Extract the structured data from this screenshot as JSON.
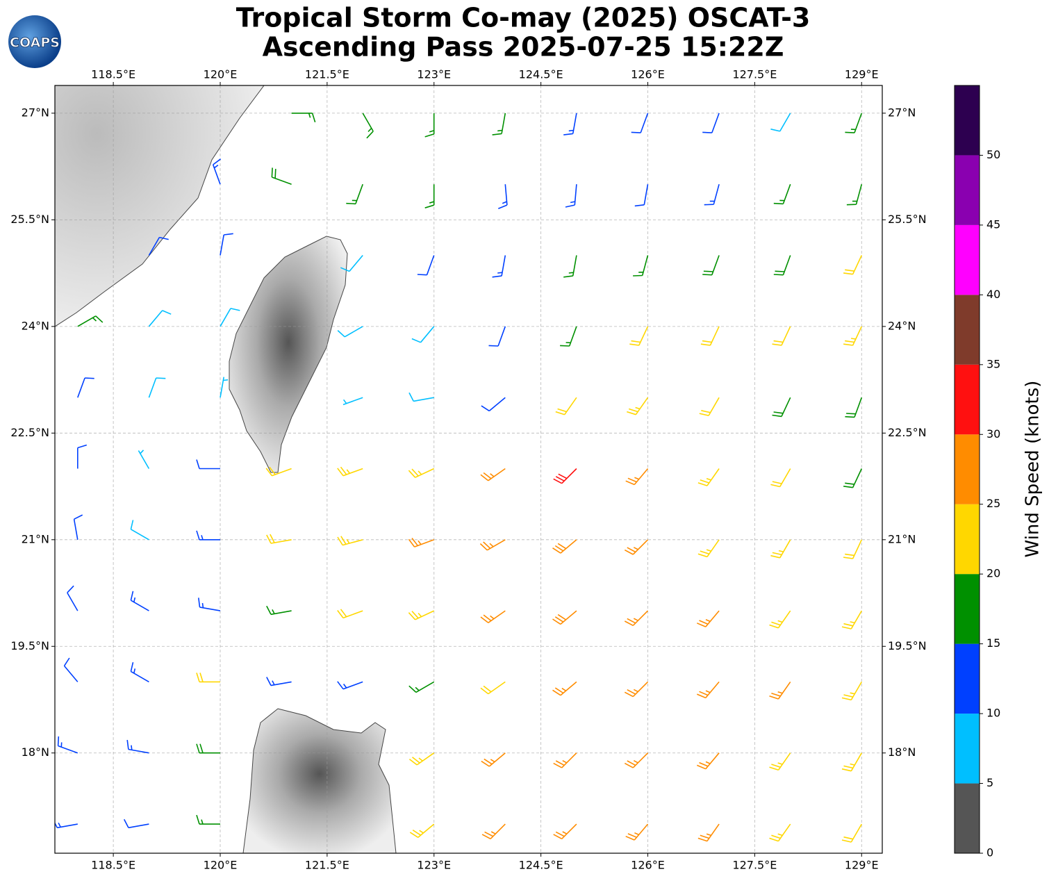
{
  "chart_data": {
    "type": "wind_barbs",
    "logo_text": "COAPS",
    "title": "Tropical Storm Co-may (2025) OSCAT-3",
    "subtitle": "Ascending Pass 2025-07-25 15:22Z",
    "xlim": [
      117.68,
      129.29
    ],
    "ylim": [
      16.59,
      27.39
    ],
    "xticks": [
      {
        "value": 118.5,
        "label": "118.5°E"
      },
      {
        "value": 120,
        "label": "120°E"
      },
      {
        "value": 121.5,
        "label": "121.5°E"
      },
      {
        "value": 123,
        "label": "123°E"
      },
      {
        "value": 124.5,
        "label": "124.5°E"
      },
      {
        "value": 126,
        "label": "126°E"
      },
      {
        "value": 127.5,
        "label": "127.5°E"
      },
      {
        "value": 129,
        "label": "129°E"
      }
    ],
    "yticks": [
      {
        "value": 18,
        "label": "18°N"
      },
      {
        "value": 19.5,
        "label": "19.5°N"
      },
      {
        "value": 21,
        "label": "21°N"
      },
      {
        "value": 22.5,
        "label": "22.5°N"
      },
      {
        "value": 24,
        "label": "24°N"
      },
      {
        "value": 25.5,
        "label": "25.5°N"
      },
      {
        "value": 27,
        "label": "27°N"
      }
    ],
    "grid": true,
    "barbs": {
      "lon": [
        118,
        119,
        120,
        121,
        122,
        123,
        124,
        125,
        126,
        127,
        128,
        129
      ],
      "lat": [
        27,
        26,
        25,
        24,
        23,
        22,
        21,
        20,
        19,
        18,
        17
      ],
      "speed": [
        [
          null,
          null,
          null,
          17,
          17,
          16,
          16,
          13,
          12,
          12,
          8,
          16
        ],
        [
          null,
          null,
          13,
          18,
          17,
          17,
          14,
          13,
          12,
          13,
          16,
          17
        ],
        [
          null,
          11,
          12,
          null,
          8,
          12,
          13,
          16,
          17,
          18,
          18,
          22
        ],
        [
          16,
          9,
          8,
          null,
          8,
          8,
          11,
          17,
          21,
          22,
          21,
          23
        ],
        [
          11,
          8,
          7,
          null,
          7,
          9,
          12,
          22,
          23,
          22,
          18,
          18
        ],
        [
          11,
          7,
          12,
          21,
          23,
          24,
          26,
          31,
          27,
          23,
          22,
          19
        ],
        [
          12,
          9,
          13,
          21,
          24,
          26,
          27,
          28,
          25,
          24,
          23,
          22
        ],
        [
          12,
          13,
          14,
          17,
          21,
          24,
          26,
          28,
          27,
          26,
          24,
          23
        ],
        [
          11,
          13,
          21,
          13,
          14,
          17,
          22,
          26,
          27,
          26,
          25,
          24
        ],
        [
          13,
          13,
          18,
          null,
          null,
          24,
          26,
          26,
          27,
          26,
          24,
          23
        ],
        [
          13,
          12,
          17,
          null,
          null,
          24,
          25,
          26,
          26,
          25,
          24,
          22
        ]
      ],
      "direction": [
        [
          null,
          null,
          null,
          90,
          150,
          180,
          190,
          190,
          200,
          200,
          210,
          200
        ],
        [
          null,
          null,
          340,
          290,
          200,
          180,
          175,
          185,
          190,
          195,
          200,
          195
        ],
        [
          null,
          30,
          10,
          null,
          220,
          200,
          190,
          190,
          195,
          200,
          200,
          205
        ],
        [
          60,
          40,
          30,
          null,
          240,
          220,
          200,
          200,
          205,
          205,
          205,
          205
        ],
        [
          20,
          20,
          10,
          null,
          250,
          260,
          230,
          215,
          215,
          210,
          205,
          200
        ],
        [
          0,
          330,
          270,
          250,
          250,
          245,
          235,
          225,
          220,
          215,
          210,
          205
        ],
        [
          350,
          300,
          270,
          260,
          255,
          250,
          240,
          230,
          225,
          215,
          210,
          205
        ],
        [
          330,
          300,
          280,
          260,
          250,
          245,
          235,
          230,
          225,
          220,
          215,
          210
        ],
        [
          320,
          300,
          270,
          260,
          250,
          240,
          235,
          230,
          225,
          220,
          215,
          210
        ],
        [
          290,
          280,
          270,
          null,
          null,
          235,
          230,
          225,
          225,
          220,
          215,
          210
        ],
        [
          260,
          260,
          270,
          null,
          null,
          230,
          225,
          225,
          220,
          215,
          215,
          210
        ]
      ]
    },
    "colorbar": {
      "label": "Wind Speed (knots)",
      "lim": [
        0,
        55
      ],
      "levels": [
        0,
        5,
        10,
        15,
        20,
        25,
        30,
        35,
        40,
        45,
        50,
        55
      ],
      "colors": [
        "#555555",
        "#00bfff",
        "#0040ff",
        "#009000",
        "#ffd700",
        "#ff8c00",
        "#ff1010",
        "#7f3b2b",
        "#ff00ff",
        "#8a00b0",
        "#2d0050"
      ],
      "ticks": [
        0,
        5,
        10,
        15,
        20,
        25,
        30,
        35,
        40,
        45,
        50
      ]
    }
  }
}
